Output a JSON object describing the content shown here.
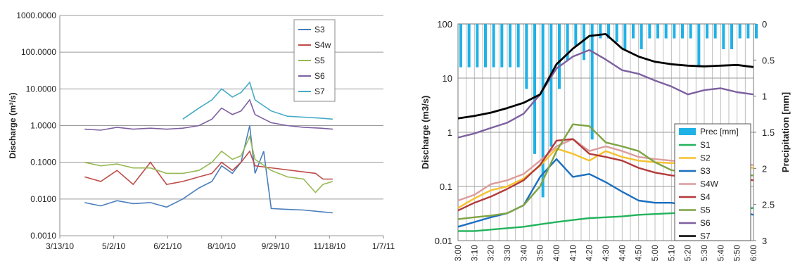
{
  "chart_data": [
    {
      "type": "line",
      "ylabel": "Discharge (m³/s)",
      "xlabel": "",
      "yscale": "log",
      "ylim": [
        0.001,
        1000
      ],
      "y_ticks": [
        "0.0010",
        "0.0100",
        "0.1000",
        "1.0000",
        "10.0000",
        "100.0000",
        "1000.0000"
      ],
      "x_ticks": [
        "3/13/10",
        "5/2/10",
        "6/21/10",
        "8/10/10",
        "9/29/10",
        "11/18/10",
        "1/7/11"
      ],
      "grid": true,
      "legend_position": "top-right",
      "series": [
        {
          "name": "S3",
          "color": "#4a7ebb",
          "x": [
            "2010-04-05",
            "2010-04-20",
            "2010-05-05",
            "2010-05-20",
            "2010-06-05",
            "2010-06-20",
            "2010-07-05",
            "2010-07-20",
            "2010-08-01",
            "2010-08-10",
            "2010-08-20",
            "2010-08-28",
            "2010-09-05",
            "2010-09-10",
            "2010-09-18",
            "2010-09-25",
            "2010-10-10",
            "2010-10-25",
            "2010-11-10",
            "2010-11-21"
          ],
          "y": [
            0.008,
            0.0065,
            0.009,
            0.0075,
            0.008,
            0.006,
            0.01,
            0.02,
            0.03,
            0.08,
            0.05,
            0.1,
            1.0,
            0.05,
            0.2,
            0.0055,
            0.0052,
            0.005,
            0.0045,
            0.0042
          ]
        },
        {
          "name": "S4w",
          "color": "#be4b48",
          "x": [
            "2010-04-05",
            "2010-04-20",
            "2010-05-05",
            "2010-05-20",
            "2010-06-05",
            "2010-06-20",
            "2010-07-05",
            "2010-07-20",
            "2010-08-01",
            "2010-08-10",
            "2010-08-20",
            "2010-08-28",
            "2010-09-05",
            "2010-09-10",
            "2010-11-05",
            "2010-11-12",
            "2010-11-21"
          ],
          "y": [
            0.04,
            0.03,
            0.06,
            0.025,
            0.1,
            0.025,
            0.03,
            0.04,
            0.05,
            0.1,
            0.06,
            0.1,
            0.2,
            0.08,
            0.05,
            0.035,
            0.035
          ]
        },
        {
          "name": "S5",
          "color": "#98b954",
          "x": [
            "2010-04-05",
            "2010-04-20",
            "2010-05-05",
            "2010-05-20",
            "2010-06-05",
            "2010-06-20",
            "2010-07-05",
            "2010-07-20",
            "2010-08-01",
            "2010-08-10",
            "2010-08-20",
            "2010-08-28",
            "2010-09-05",
            "2010-09-10",
            "2010-09-25",
            "2010-10-10",
            "2010-10-25",
            "2010-11-05",
            "2010-11-12",
            "2010-11-21"
          ],
          "y": [
            0.1,
            0.08,
            0.09,
            0.07,
            0.07,
            0.05,
            0.05,
            0.06,
            0.1,
            0.2,
            0.12,
            0.15,
            0.5,
            0.12,
            0.06,
            0.04,
            0.035,
            0.015,
            0.025,
            0.03
          ]
        },
        {
          "name": "S6",
          "color": "#7d60a0",
          "x": [
            "2010-04-05",
            "2010-04-20",
            "2010-05-05",
            "2010-05-20",
            "2010-06-05",
            "2010-06-20",
            "2010-07-05",
            "2010-07-20",
            "2010-08-01",
            "2010-08-10",
            "2010-08-20",
            "2010-08-28",
            "2010-09-05",
            "2010-09-10",
            "2010-09-25",
            "2010-10-10",
            "2010-10-25",
            "2010-11-10",
            "2010-11-21"
          ],
          "y": [
            0.8,
            0.75,
            0.9,
            0.8,
            0.85,
            0.8,
            0.85,
            1.0,
            1.5,
            3.0,
            2.0,
            2.5,
            5.0,
            2.0,
            1.2,
            1.0,
            0.9,
            0.85,
            0.8
          ]
        },
        {
          "name": "S7",
          "color": "#46aac5",
          "x": [
            "2010-07-05",
            "2010-07-20",
            "2010-08-01",
            "2010-08-10",
            "2010-08-20",
            "2010-08-28",
            "2010-09-05",
            "2010-09-10",
            "2010-09-25",
            "2010-10-10",
            "2010-10-25",
            "2010-11-10",
            "2010-11-21"
          ],
          "y": [
            1.5,
            3.0,
            5.0,
            10.0,
            6.0,
            8.0,
            15.0,
            5.0,
            2.5,
            1.8,
            1.7,
            1.6,
            1.5
          ]
        }
      ]
    },
    {
      "type": "line",
      "ylabel": "Discharge (m3/s)",
      "y2label": "Precipitation [mm]",
      "yscale": "log",
      "ylim": [
        0.01,
        100
      ],
      "y_ticks": [
        "0.01",
        "0.1",
        "1",
        "10",
        "100"
      ],
      "y2lim": [
        3,
        0
      ],
      "y2_ticks": [
        "0",
        "0.5",
        "1",
        "1.5",
        "2",
        "2.5",
        "3"
      ],
      "x_ticks": [
        "3:00",
        "3:10",
        "3:20",
        "3:30",
        "3:40",
        "3:50",
        "4:00",
        "4:10",
        "4:20",
        "4:30",
        "4:40",
        "4:50",
        "5:00",
        "5:10",
        "5:20",
        "5:30",
        "5:40",
        "5:50",
        "6:00"
      ],
      "grid": true,
      "legend_position": "bottom-right",
      "bars": {
        "name": "Prec [mm]",
        "color": "#1fb2e6",
        "axis": "secondary",
        "values": [
          0.6,
          0.6,
          0.6,
          0.6,
          0.6,
          0.6,
          0.6,
          0.6,
          0.9,
          1.8,
          2.4,
          1.7,
          0.9,
          0.5,
          0.3,
          0.5,
          1.6,
          0.2,
          0.2,
          0.25,
          0.35,
          0.2,
          0.35,
          0.2,
          0.2,
          0.2,
          0.2,
          0.2,
          0.2,
          0.6,
          0.2,
          0.2,
          0.35,
          0.35,
          0.2,
          0.2,
          0.2
        ]
      },
      "series": [
        {
          "name": "S1",
          "color": "#22b35c",
          "x": [
            0,
            2,
            4,
            6,
            8,
            10,
            12,
            14,
            16,
            18,
            20,
            22,
            24,
            26,
            28,
            30,
            32,
            34,
            36
          ],
          "y": [
            0.015,
            0.015,
            0.016,
            0.017,
            0.018,
            0.02,
            0.022,
            0.024,
            0.026,
            0.027,
            0.028,
            0.03,
            0.031,
            0.032,
            0.033,
            0.035,
            0.036,
            0.038,
            0.04
          ]
        },
        {
          "name": "S2",
          "color": "#f6c12e",
          "x": [
            0,
            2,
            4,
            6,
            8,
            10,
            12,
            14,
            16,
            18,
            20,
            22,
            24,
            26,
            28,
            30,
            32,
            34,
            36
          ],
          "y": [
            0.04,
            0.06,
            0.085,
            0.1,
            0.14,
            0.24,
            0.5,
            0.4,
            0.3,
            0.45,
            0.35,
            0.3,
            0.28,
            0.27,
            0.27,
            0.25,
            0.24,
            0.23,
            0.22
          ]
        },
        {
          "name": "S3",
          "color": "#1a6fbf",
          "x": [
            0,
            2,
            4,
            6,
            8,
            10,
            12,
            14,
            16,
            18,
            20,
            22,
            24,
            26,
            28,
            30,
            32,
            34,
            36
          ],
          "y": [
            0.018,
            0.022,
            0.027,
            0.032,
            0.045,
            0.15,
            0.32,
            0.15,
            0.17,
            0.12,
            0.08,
            0.055,
            0.05,
            0.05,
            0.045,
            0.04,
            0.035,
            0.035,
            0.03
          ]
        },
        {
          "name": "S4W",
          "color": "#dc9c9c",
          "x": [
            0,
            2,
            4,
            6,
            8,
            10,
            12,
            14,
            16,
            18,
            20,
            22,
            24,
            26,
            28,
            30,
            32,
            34,
            36
          ],
          "y": [
            0.055,
            0.07,
            0.11,
            0.13,
            0.17,
            0.3,
            0.55,
            0.75,
            0.45,
            0.55,
            0.45,
            0.35,
            0.32,
            0.3,
            0.28,
            0.27,
            0.26,
            0.25,
            0.25
          ]
        },
        {
          "name": "S4",
          "color": "#b33a3a",
          "x": [
            0,
            2,
            4,
            6,
            8,
            10,
            12,
            14,
            16,
            18,
            20,
            22,
            24,
            26,
            28,
            30,
            32,
            34,
            36
          ],
          "y": [
            0.036,
            0.05,
            0.065,
            0.09,
            0.13,
            0.25,
            0.7,
            0.75,
            0.4,
            0.35,
            0.3,
            0.22,
            0.18,
            0.16,
            0.15,
            0.15,
            0.14,
            0.14,
            0.13
          ]
        },
        {
          "name": "S5",
          "color": "#7ea343",
          "x": [
            0,
            2,
            4,
            6,
            8,
            10,
            12,
            14,
            16,
            18,
            20,
            22,
            24,
            26,
            28,
            30,
            32,
            34,
            36
          ],
          "y": [
            0.025,
            0.027,
            0.029,
            0.032,
            0.045,
            0.1,
            0.45,
            1.4,
            1.3,
            0.65,
            0.55,
            0.45,
            0.28,
            0.2,
            0.18,
            0.17,
            0.17,
            0.16,
            0.16
          ]
        },
        {
          "name": "S6",
          "color": "#7d60a0",
          "x": [
            0,
            2,
            4,
            6,
            8,
            10,
            12,
            14,
            16,
            18,
            20,
            22,
            24,
            26,
            28,
            30,
            32,
            34,
            36
          ],
          "y": [
            0.8,
            0.95,
            1.2,
            1.5,
            2.2,
            5,
            15,
            25,
            33,
            22,
            14,
            12,
            9,
            7,
            5,
            6,
            6.5,
            5.5,
            5
          ]
        },
        {
          "name": "S7",
          "color": "#000000",
          "x": [
            0,
            2,
            4,
            6,
            8,
            10,
            12,
            14,
            16,
            18,
            20,
            22,
            24,
            26,
            28,
            30,
            32,
            34,
            36
          ],
          "y": [
            1.8,
            2,
            2.3,
            2.8,
            3.5,
            5,
            18,
            35,
            60,
            65,
            35,
            25,
            20,
            18,
            17,
            16.5,
            17,
            17.5,
            16
          ]
        }
      ]
    }
  ]
}
